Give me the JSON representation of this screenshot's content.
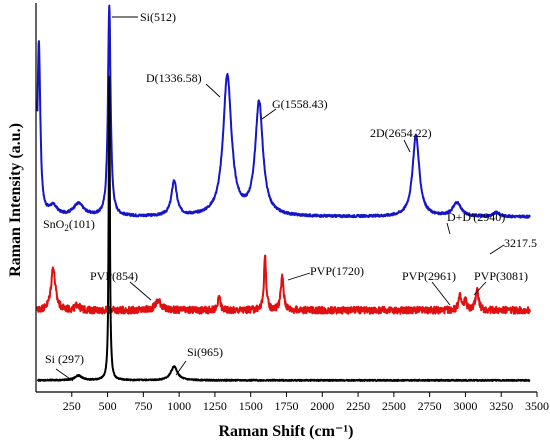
{
  "chart_data": {
    "type": "line",
    "xlabel": "Raman Shift (cm⁻¹)",
    "ylabel": "Raman Intensity (a.u.)",
    "xlim": [
      0,
      3500
    ],
    "ylim": [
      0,
      100
    ],
    "xticks": [
      {
        "value": 250,
        "label": "250"
      },
      {
        "value": 500,
        "label": "500"
      },
      {
        "value": 750,
        "label": "750"
      },
      {
        "value": 1000,
        "label": "1000"
      },
      {
        "value": 1250,
        "label": "1250"
      },
      {
        "value": 1500,
        "label": "1500"
      },
      {
        "value": 1750,
        "label": "1750"
      },
      {
        "value": 2000,
        "label": "2000"
      },
      {
        "value": 2250,
        "label": "2250"
      },
      {
        "value": 2500,
        "label": "2500"
      },
      {
        "value": 2750,
        "label": "2750"
      },
      {
        "value": 3000,
        "label": "3000"
      },
      {
        "value": 3250,
        "label": "3250"
      },
      {
        "value": 3500,
        "label": "3500"
      }
    ],
    "series": [
      {
        "color": "#1616c8",
        "baseline": 45,
        "noise_amp": 0.3,
        "peaks": [
          {
            "x": 20,
            "h": 45,
            "w": 12
          },
          {
            "x": 120,
            "h": 2.5,
            "w": 35
          },
          {
            "x": 297,
            "h": 3.2,
            "w": 45
          },
          {
            "x": 512,
            "h": 54,
            "w": 11
          },
          {
            "x": 965,
            "h": 9,
            "w": 22
          },
          {
            "x": 1336.58,
            "h": 36,
            "w": 35
          },
          {
            "x": 1558.43,
            "h": 29,
            "w": 32
          },
          {
            "x": 2654.22,
            "h": 21,
            "w": 28
          },
          {
            "x": 2940,
            "h": 3.5,
            "w": 35
          },
          {
            "x": 3217.5,
            "h": 1,
            "w": 28
          }
        ]
      },
      {
        "color": "#e01010",
        "baseline": 21,
        "noise_amp": 0.9,
        "peaks": [
          {
            "x": 120,
            "h": 11,
            "w": 18
          },
          {
            "x": 290,
            "h": 1.5,
            "w": 15
          },
          {
            "x": 854,
            "h": 2.5,
            "w": 25
          },
          {
            "x": 1280,
            "h": 3.5,
            "w": 10
          },
          {
            "x": 1600,
            "h": 14,
            "w": 9
          },
          {
            "x": 1720,
            "h": 8.5,
            "w": 12
          },
          {
            "x": 2961,
            "h": 3.5,
            "w": 12
          },
          {
            "x": 3000,
            "h": 2.5,
            "w": 10
          },
          {
            "x": 3081,
            "h": 5.5,
            "w": 12
          }
        ]
      },
      {
        "color": "#000000",
        "baseline": 3,
        "noise_amp": 0.15,
        "peaks": [
          {
            "x": 297,
            "h": 1.2,
            "w": 30
          },
          {
            "x": 512,
            "h": 78,
            "w": 5
          },
          {
            "x": 965,
            "h": 3.5,
            "w": 28
          }
        ]
      }
    ],
    "annotations": [
      {
        "text": "Si(512)"
      },
      {
        "text": "D(1336.58)"
      },
      {
        "text": "G(1558.43)"
      },
      {
        "text": "2D(2654.22)"
      },
      {
        "text": "D+D'(2940)"
      },
      {
        "text": "3217.5"
      },
      {
        "text": "SnO",
        "sub": "2",
        "tail": "(101)"
      },
      {
        "text": "PVP(854)"
      },
      {
        "text": "PVP(1720)"
      },
      {
        "text": "PVP(2961)"
      },
      {
        "text": "PVP(3081)"
      },
      {
        "text": "Si (297)"
      },
      {
        "text": "Si(965)"
      }
    ]
  }
}
